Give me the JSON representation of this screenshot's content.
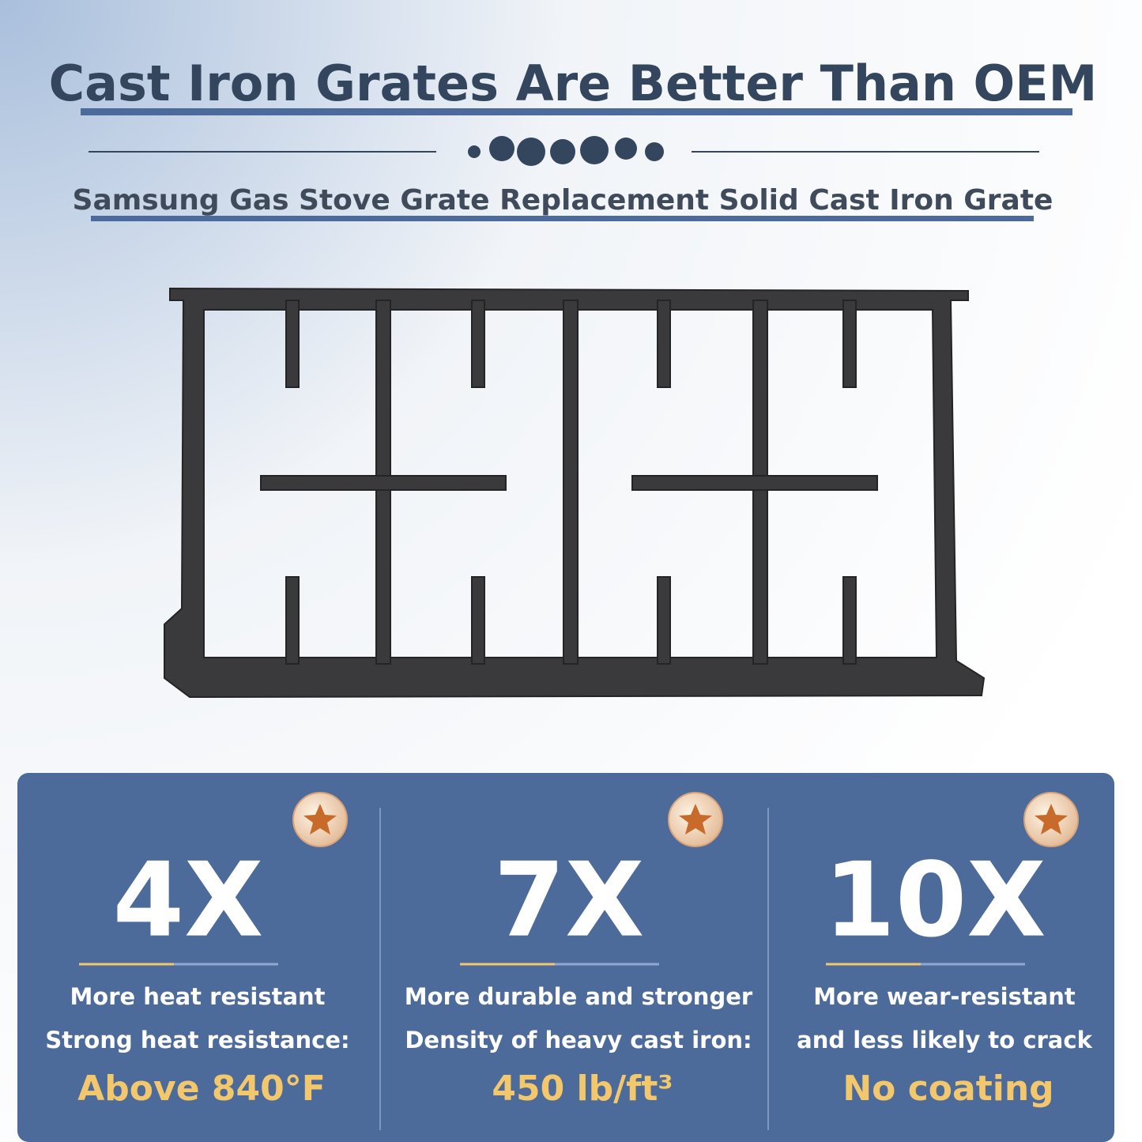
{
  "header": {
    "title": "Cast Iron Grates Are Better Than OEM",
    "subtitle": "Samsung Gas Stove Grate Replacement Solid Cast Iron Grate"
  },
  "features": [
    {
      "big": "4X",
      "line1": "More heat resistant",
      "line2": "Strong heat resistance:",
      "highlight": "Above 840°F"
    },
    {
      "big": "7X",
      "line1": "More durable and stronger",
      "line2": "Density of heavy cast iron:",
      "highlight": "450 lb/ft³"
    },
    {
      "big": "10X",
      "line1": "More wear-resistant",
      "line2": "and less likely to crack",
      "highlight": "No coating"
    }
  ]
}
